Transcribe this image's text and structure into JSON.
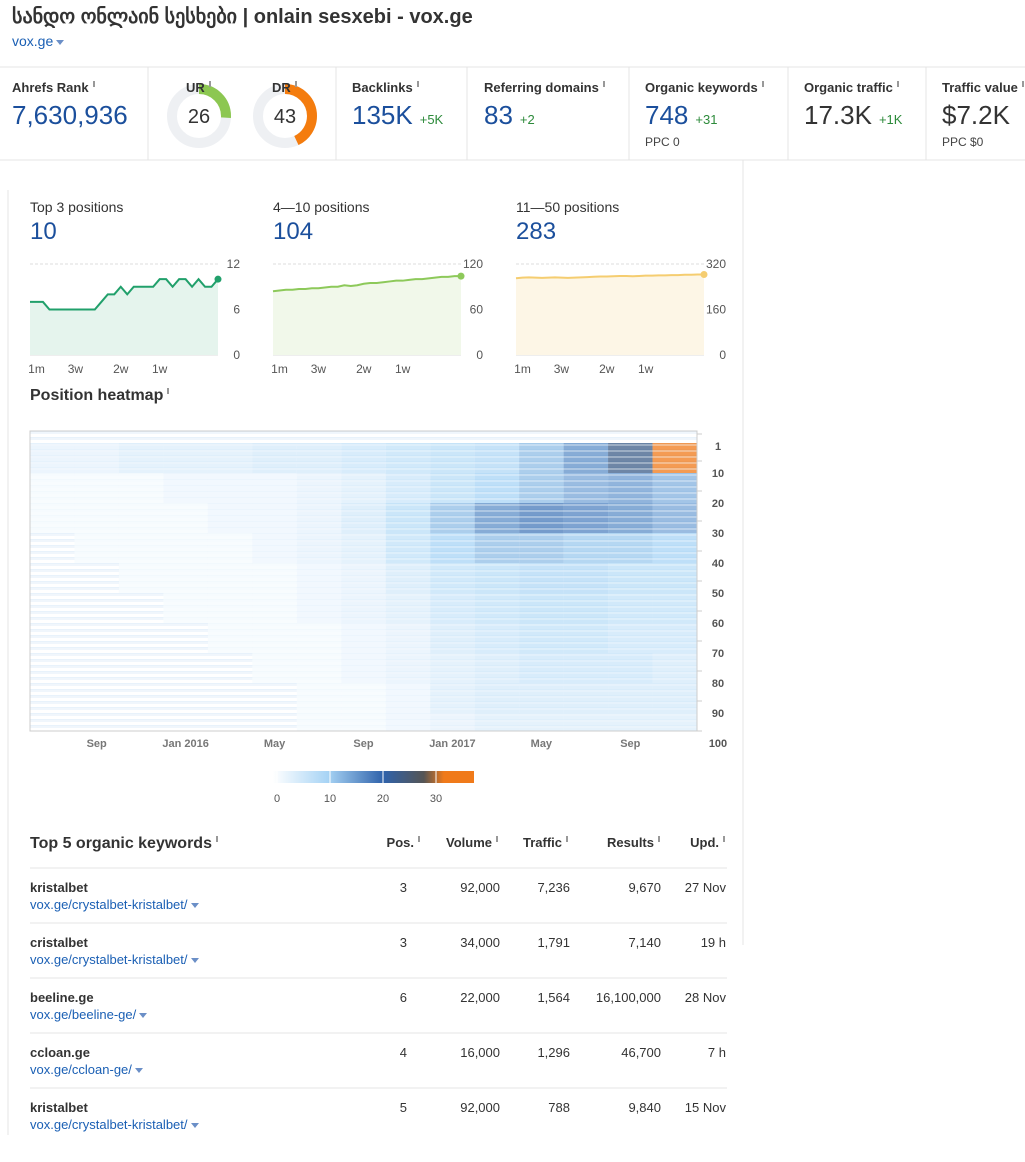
{
  "header": {
    "title": "სანდო ონლაინ სესხები | onlain sesxebi - vox.ge",
    "domain": "vox.ge"
  },
  "metrics": {
    "ahrefs_rank": {
      "label": "Ahrefs Rank",
      "value": "7,630,936"
    },
    "ur": {
      "label": "UR",
      "value": 26,
      "color": "#8cc751"
    },
    "dr": {
      "label": "DR",
      "value": 43,
      "color": "#f47c0e"
    },
    "backlinks": {
      "label": "Backlinks",
      "value": "135K",
      "change": "+5K"
    },
    "referring_domains": {
      "label": "Referring domains",
      "value": "83",
      "change": "+2"
    },
    "organic_keywords": {
      "label": "Organic keywords",
      "value": "748",
      "change": "+31",
      "sub": "PPC 0"
    },
    "organic_traffic": {
      "label": "Organic traffic",
      "value": "17.3K",
      "change": "+1K"
    },
    "traffic_value": {
      "label": "Traffic value",
      "value": "$7.2K",
      "sub": "PPC $0"
    }
  },
  "positions": {
    "xticks": [
      {
        "value": 1,
        "label": "1m"
      },
      {
        "value": 7,
        "label": "3w"
      },
      {
        "value": 14,
        "label": "2w"
      },
      {
        "value": 20,
        "label": "1w"
      }
    ],
    "cards": [
      {
        "label": "Top 3 positions",
        "value": 10,
        "ylim": [
          0,
          12
        ],
        "yticks": [
          0,
          6,
          12
        ],
        "color": "#21a06b",
        "fill": "#e5f4ed",
        "values": [
          7,
          7,
          7,
          6,
          6,
          6,
          6,
          6,
          6,
          6,
          6,
          7,
          8,
          8,
          9,
          8,
          9,
          9,
          9,
          9,
          10,
          10,
          9,
          10,
          10,
          9,
          10,
          9,
          9,
          10
        ]
      },
      {
        "label": "4—10 positions",
        "value": 104,
        "ylim": [
          0,
          120
        ],
        "yticks": [
          0,
          60,
          120
        ],
        "color": "#8dc95a",
        "fill": "#f1f8ea",
        "values": [
          84,
          85,
          86,
          86,
          87,
          87,
          88,
          88,
          89,
          90,
          90,
          92,
          91,
          92,
          94,
          95,
          95,
          96,
          97,
          98,
          98,
          99,
          100,
          100,
          101,
          102,
          103,
          103,
          104,
          104
        ]
      },
      {
        "label": "11—50 positions",
        "value": 283,
        "ylim": [
          0,
          320
        ],
        "yticks": [
          0,
          160,
          320
        ],
        "color": "#f5cd70",
        "fill": "#fdf6e6",
        "values": [
          270,
          272,
          273,
          272,
          271,
          272,
          273,
          272,
          271,
          272,
          273,
          274,
          275,
          276,
          276,
          277,
          278,
          278,
          277,
          278,
          279,
          279,
          280,
          280,
          281,
          281,
          282,
          282,
          283,
          283
        ]
      }
    ]
  },
  "heatmap": {
    "title": "Position heatmap",
    "xlim": [
      0,
      30
    ],
    "xticks": [
      {
        "value": 3,
        "label": "Sep"
      },
      {
        "value": 7,
        "label": "Jan 2016"
      },
      {
        "value": 11,
        "label": "May"
      },
      {
        "value": 15,
        "label": "Sep"
      },
      {
        "value": 19,
        "label": "Jan 2017"
      },
      {
        "value": 23,
        "label": "May"
      },
      {
        "value": 27,
        "label": "Sep"
      }
    ],
    "ylim": [
      -4,
      96
    ],
    "yticks": [
      1,
      10,
      20,
      30,
      40,
      50,
      60,
      70,
      80,
      90,
      100
    ],
    "rows": [
      [
        3,
        3,
        4,
        4,
        4,
        5,
        5,
        6,
        7,
        8,
        9,
        12,
        16,
        22,
        30
      ],
      [
        1,
        1,
        1,
        2,
        2,
        2,
        3,
        4,
        6,
        8,
        10,
        12,
        14,
        15,
        13
      ],
      [
        1,
        1,
        1,
        1,
        2,
        2,
        3,
        5,
        8,
        12,
        16,
        18,
        17,
        16,
        14
      ],
      [
        0,
        1,
        1,
        1,
        1,
        2,
        3,
        4,
        7,
        10,
        12,
        12,
        11,
        11,
        10
      ],
      [
        0,
        0,
        1,
        1,
        1,
        1,
        2,
        3,
        5,
        7,
        8,
        9,
        9,
        8,
        8
      ],
      [
        0,
        0,
        0,
        1,
        1,
        1,
        2,
        3,
        4,
        6,
        7,
        8,
        8,
        7,
        7
      ],
      [
        0,
        0,
        0,
        0,
        1,
        1,
        1,
        2,
        3,
        5,
        6,
        7,
        7,
        6,
        6
      ],
      [
        0,
        0,
        0,
        0,
        0,
        1,
        1,
        2,
        3,
        4,
        5,
        6,
        6,
        6,
        5
      ],
      [
        0,
        0,
        0,
        0,
        0,
        0,
        1,
        1,
        2,
        4,
        5,
        5,
        5,
        5,
        5
      ],
      [
        0,
        0,
        0,
        0,
        0,
        0,
        1,
        1,
        2,
        3,
        4,
        4,
        4,
        4,
        4
      ]
    ],
    "legend_ticks": [
      0,
      10,
      20,
      30
    ]
  },
  "keywords": {
    "title": "Top 5 organic keywords",
    "columns": [
      "Pos.",
      "Volume",
      "Traffic",
      "Results",
      "Upd."
    ],
    "rows": [
      {
        "keyword": "kristalbet",
        "url": "vox.ge/crystalbet-kristalbet/",
        "cells": [
          "3",
          "92,000",
          "7,236",
          "9,670",
          "27 Nov"
        ]
      },
      {
        "keyword": "cristalbet",
        "url": "vox.ge/crystalbet-kristalbet/",
        "cells": [
          "3",
          "34,000",
          "1,791",
          "7,140",
          "19 h"
        ]
      },
      {
        "keyword": "beeline.ge",
        "url": "vox.ge/beeline-ge/",
        "cells": [
          "6",
          "22,000",
          "1,564",
          "16,100,000",
          "28 Nov"
        ]
      },
      {
        "keyword": "ccloan.ge",
        "url": "vox.ge/ccloan-ge/",
        "cells": [
          "4",
          "16,000",
          "1,296",
          "46,700",
          "7 h"
        ]
      },
      {
        "keyword": "kristalbet",
        "url": "vox.ge/crystalbet-kristalbet/",
        "cells": [
          "5",
          "92,000",
          "788",
          "9,840",
          "15 Nov"
        ]
      }
    ]
  }
}
